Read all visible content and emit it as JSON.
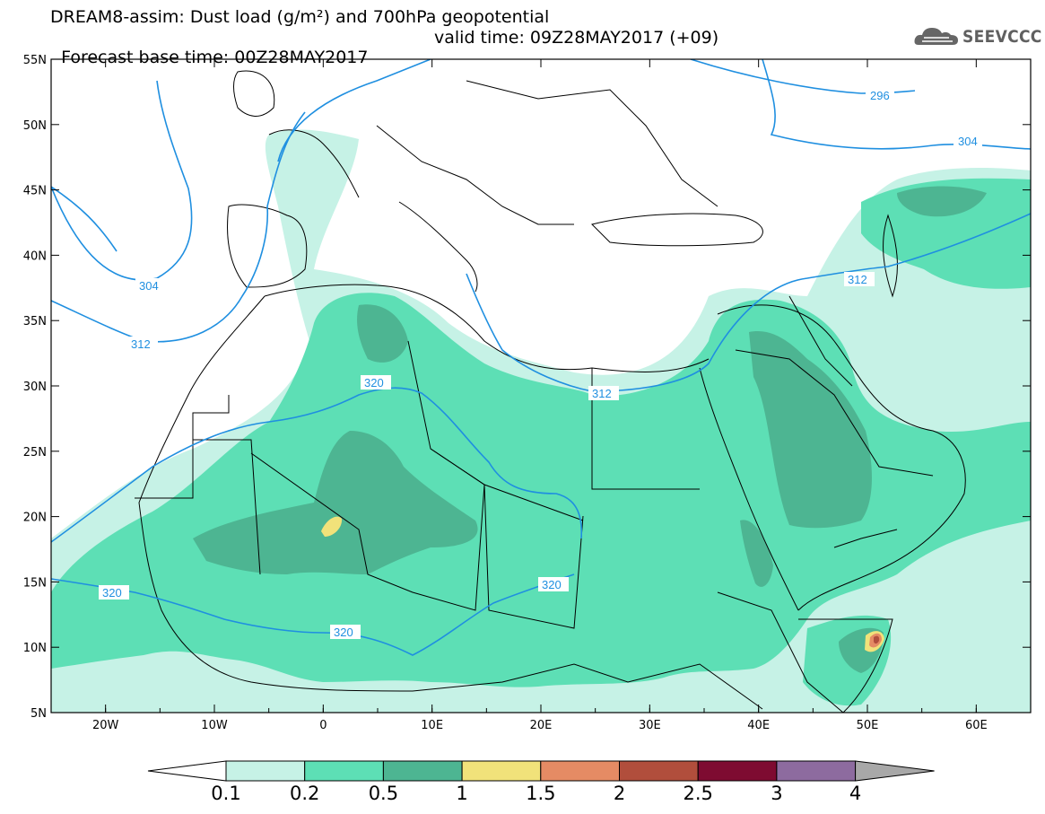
{
  "header": {
    "line1": "DREAM8-assim: Dust load (g/m²) and 700hPa geopotential",
    "line2_left": "Forecast base time: 00Z28MAY2017",
    "line2_right": "valid time: 09Z28MAY2017 (+09)"
  },
  "logo": {
    "text": "SEEVCCC",
    "icon": "cloud-logo-icon"
  },
  "map": {
    "lon_range": [
      -25,
      65
    ],
    "lat_range": [
      5,
      55
    ],
    "lon_ticks": [
      "20W",
      "10W",
      "0",
      "10E",
      "20E",
      "30E",
      "40E",
      "50E",
      "60E"
    ],
    "lat_ticks": [
      "55N",
      "50N",
      "45N",
      "40N",
      "35N",
      "30N",
      "25N",
      "20N",
      "15N",
      "10N",
      "5N"
    ],
    "contour_labels": [
      "296",
      "304",
      "304",
      "312",
      "312",
      "312",
      "320",
      "320",
      "320",
      "320"
    ]
  },
  "colorbar": {
    "labels": [
      "0.1",
      "0.2",
      "0.5",
      "1",
      "1.5",
      "2",
      "2.5",
      "3",
      "4"
    ],
    "colors": [
      "#c6f2e6",
      "#5ddfb5",
      "#4db592",
      "#f1e27a",
      "#e58b64",
      "#b14e3c",
      "#7e0b31",
      "#8d6b9f"
    ],
    "under_color": "#ffffff",
    "over_color": "#a8a8a8"
  },
  "colors": {
    "contour": "#1f8fe0",
    "border": "#000000"
  }
}
